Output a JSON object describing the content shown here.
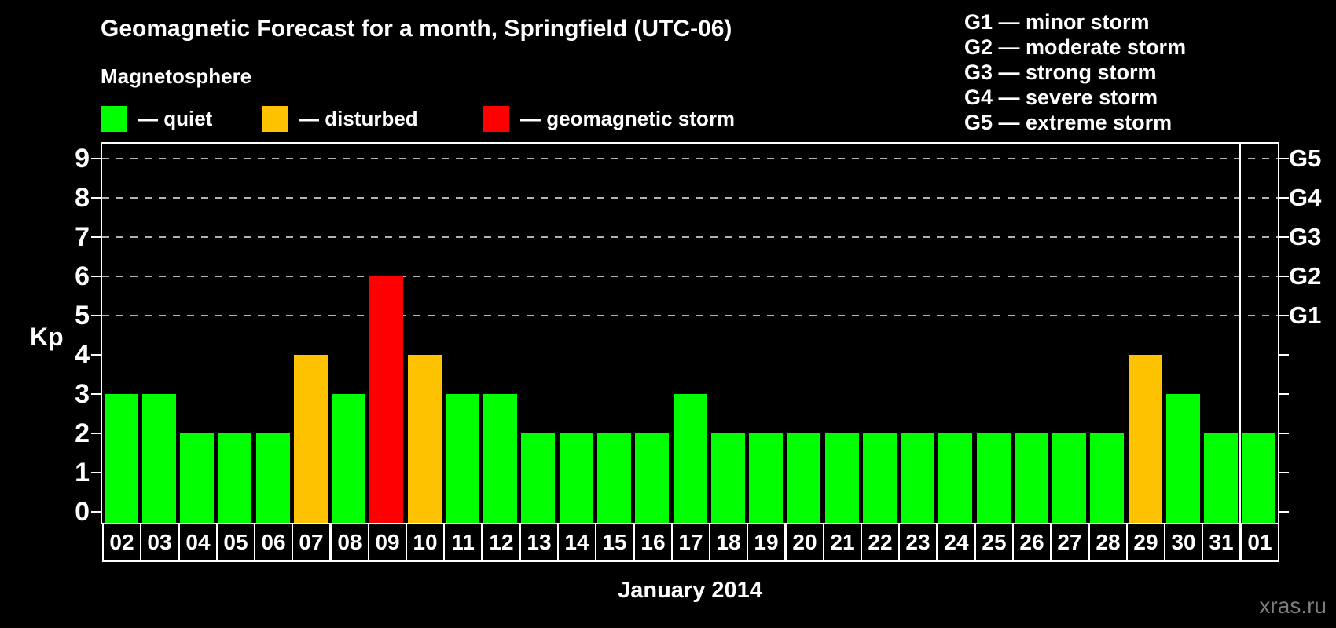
{
  "title": "Geomagnetic Forecast for a month, Springfield (UTC-06)",
  "legend": {
    "heading": "Magnetosphere",
    "items": [
      {
        "state": "quiet",
        "label": "— quiet"
      },
      {
        "state": "disturbed",
        "label": "— disturbed"
      },
      {
        "state": "storm",
        "label": "— geomagnetic storm"
      }
    ]
  },
  "g_legend": [
    "G1 — minor storm",
    "G2 — moderate storm",
    "G3 — strong storm",
    "G4 — severe storm",
    "G5 — extreme storm"
  ],
  "axes": {
    "y_label": "Kp",
    "y_ticks": [
      0,
      1,
      2,
      3,
      4,
      5,
      6,
      7,
      8,
      9
    ],
    "right_labels": [
      {
        "label": "G1",
        "level": 5
      },
      {
        "label": "G2",
        "level": 6
      },
      {
        "label": "G3",
        "level": 7
      },
      {
        "label": "G4",
        "level": 8
      },
      {
        "label": "G5",
        "level": 9
      }
    ],
    "x_label": "January 2014"
  },
  "chart_data": {
    "type": "bar",
    "title": "Geomagnetic Forecast for a month, Springfield (UTC-06)",
    "xlabel": "January 2014",
    "ylabel": "Kp",
    "ylim": [
      0,
      9
    ],
    "grid": "dashed horizontal lines at Kp 5-9 only",
    "legend_position": "top-left",
    "categories": [
      "02",
      "03",
      "04",
      "05",
      "06",
      "07",
      "08",
      "09",
      "10",
      "11",
      "12",
      "13",
      "14",
      "15",
      "16",
      "17",
      "18",
      "19",
      "20",
      "21",
      "22",
      "23",
      "24",
      "25",
      "26",
      "27",
      "28",
      "29",
      "30",
      "31",
      "01"
    ],
    "values": [
      3,
      3,
      2,
      2,
      2,
      4,
      3,
      6,
      4,
      3,
      3,
      2,
      2,
      2,
      2,
      3,
      2,
      2,
      2,
      2,
      2,
      2,
      2,
      2,
      2,
      2,
      2,
      4,
      3,
      2,
      2
    ],
    "states": [
      "quiet",
      "quiet",
      "quiet",
      "quiet",
      "quiet",
      "disturbed",
      "quiet",
      "storm",
      "disturbed",
      "quiet",
      "quiet",
      "quiet",
      "quiet",
      "quiet",
      "quiet",
      "quiet",
      "quiet",
      "quiet",
      "quiet",
      "quiet",
      "quiet",
      "quiet",
      "quiet",
      "quiet",
      "quiet",
      "quiet",
      "quiet",
      "disturbed",
      "quiet",
      "quiet",
      "quiet"
    ],
    "gridline_levels": [
      5,
      6,
      7,
      8,
      9
    ],
    "month_separator_after_index": 29
  },
  "colors": {
    "quiet": "#00ff00",
    "disturbed": "#ffc200",
    "storm": "#ff0000",
    "grid": "#b3b3b3",
    "axis": "#ffffff",
    "watermark": "#7d7d7d"
  },
  "watermark": "xras.ru"
}
